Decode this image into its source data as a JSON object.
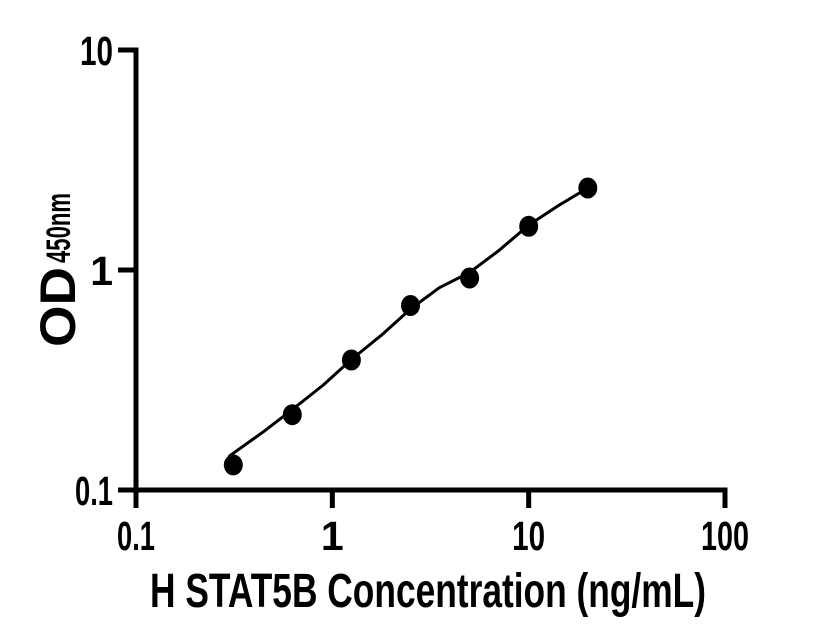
{
  "chart_data": {
    "type": "scatter",
    "title": "",
    "xlabel": "H STAT5B Concentration (ng/mL)",
    "ylabel_main": "OD",
    "ylabel_sub": "450nm",
    "x_scale": "log",
    "y_scale": "log",
    "xlim": [
      0.1,
      100
    ],
    "ylim": [
      0.1,
      10
    ],
    "grid": false,
    "legend": "none",
    "axis_color": "#000000",
    "background_color": "#ffffff",
    "x_ticks": [
      {
        "value": 0.1,
        "label": "0.1"
      },
      {
        "value": 1,
        "label": "1"
      },
      {
        "value": 10,
        "label": "10"
      },
      {
        "value": 100,
        "label": "100"
      }
    ],
    "y_ticks": [
      {
        "value": 0.1,
        "label": "0.1"
      },
      {
        "value": 1,
        "label": "1"
      },
      {
        "value": 10,
        "label": "10"
      }
    ],
    "series": [
      {
        "marker": "filled-circle",
        "marker_color": "#000000",
        "line_color": "#000000",
        "points": [
          {
            "x": 0.313,
            "y": 0.13
          },
          {
            "x": 0.625,
            "y": 0.22
          },
          {
            "x": 1.25,
            "y": 0.39
          },
          {
            "x": 2.5,
            "y": 0.69
          },
          {
            "x": 5,
            "y": 0.92
          },
          {
            "x": 10,
            "y": 1.58
          },
          {
            "x": 20,
            "y": 2.36
          }
        ],
        "fit_curve": [
          {
            "x": 0.3,
            "y": 0.143
          },
          {
            "x": 0.45,
            "y": 0.185
          },
          {
            "x": 0.625,
            "y": 0.232
          },
          {
            "x": 0.9,
            "y": 0.3
          },
          {
            "x": 1.25,
            "y": 0.392
          },
          {
            "x": 1.8,
            "y": 0.51
          },
          {
            "x": 2.5,
            "y": 0.665
          },
          {
            "x": 3.5,
            "y": 0.83
          },
          {
            "x": 5,
            "y": 0.975
          },
          {
            "x": 7,
            "y": 1.22
          },
          {
            "x": 10,
            "y": 1.6
          },
          {
            "x": 14,
            "y": 1.95
          },
          {
            "x": 20,
            "y": 2.36
          }
        ]
      }
    ]
  }
}
